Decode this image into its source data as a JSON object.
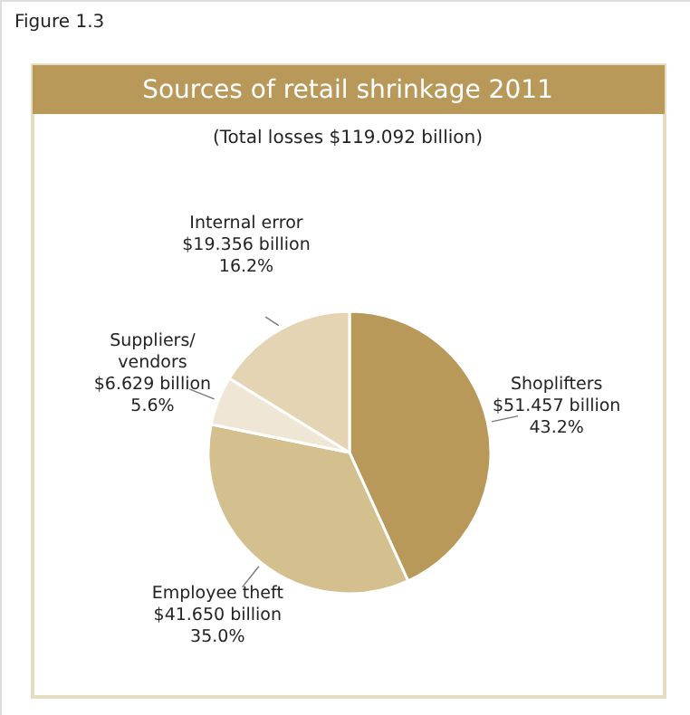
{
  "chart_data": {
    "type": "pie",
    "title": "Sources of retail shrinkage 2011",
    "subtitle": "(Total losses $119.092 billion)",
    "annotations": [
      "Figure 1.3"
    ],
    "categories": [
      "Shoplifters",
      "Employee theft",
      "Suppliers/\nvendors",
      "Internal error"
    ],
    "values": [
      43.2,
      35.0,
      5.6,
      16.2
    ],
    "value_labels": [
      "$51.457 billion\n43.2%",
      "$41.650 billion\n35.0%",
      "$6.629 billion\n5.6%",
      "$19.356 billion\n16.2%"
    ],
    "colors": [
      "#b8995a",
      "#d4c08e",
      "#efe6d5",
      "#e4d4b3"
    ]
  }
}
